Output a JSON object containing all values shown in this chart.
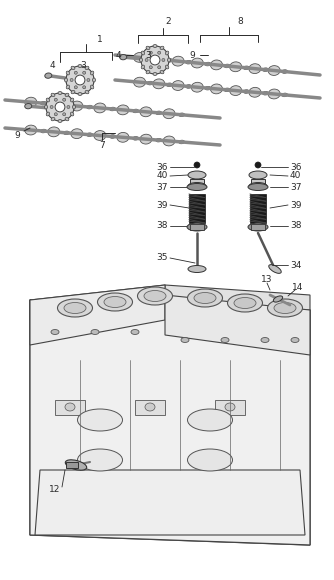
{
  "bg_color": "#ffffff",
  "lc": "#2a2a2a",
  "fs": 6.5,
  "camshaft_color": "#c8c8c8",
  "spring_dark": "#1a1a1a",
  "engine_fill": "#f0f0f0",
  "engine_stroke": "#444444"
}
